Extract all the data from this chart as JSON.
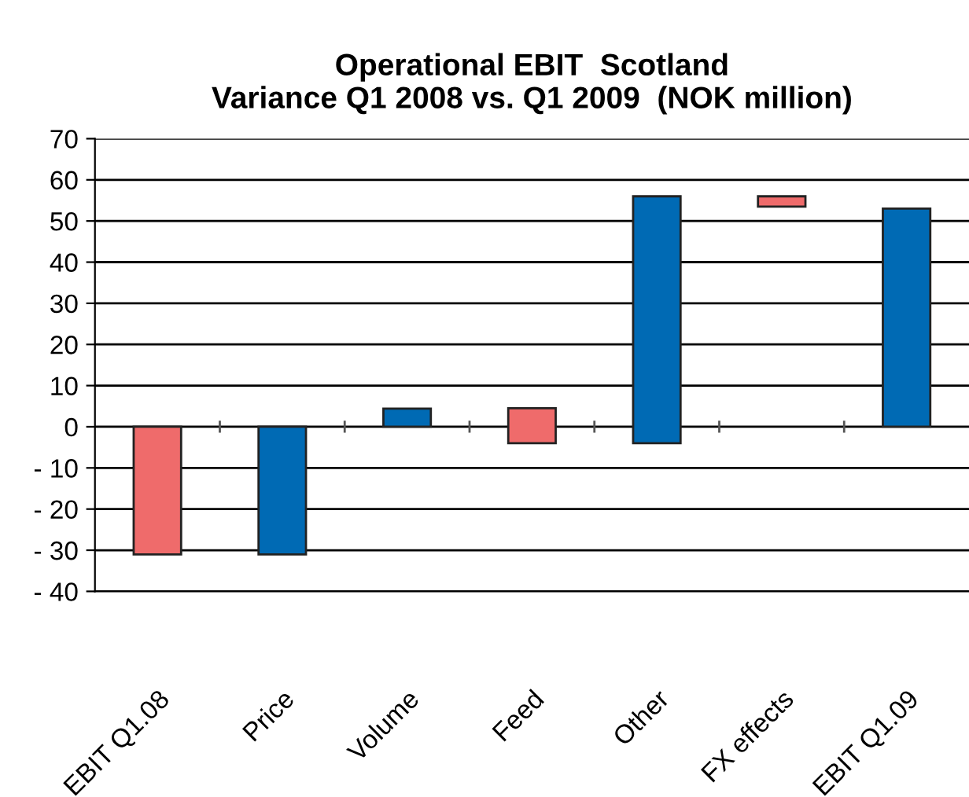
{
  "chart_data": {
    "type": "bar",
    "title": "Operational EBIT  Scotland\nVariance Q1 2008 vs. Q1 2009  (NOK million)",
    "categories": [
      "EBIT Q1.08",
      "Price",
      "Volume",
      "Feed",
      "Other",
      "FX effects",
      "EBIT Q1.09"
    ],
    "values": [
      -31,
      -31,
      4.4,
      8.5,
      60,
      2.5,
      53
    ],
    "base": [
      0,
      0,
      0,
      -4,
      -4,
      53.5,
      0
    ],
    "colors": [
      "#ef6b6b",
      "#006ab4",
      "#006ab4",
      "#ef6b6b",
      "#006ab4",
      "#ef6b6b",
      "#006ab4"
    ],
    "ylim": [
      -40,
      70
    ],
    "yticks": [
      70,
      60,
      50,
      40,
      30,
      20,
      10,
      0,
      {
        "value": -10,
        "label": "- 10"
      },
      {
        "value": -20,
        "label": "- 20"
      },
      {
        "value": -30,
        "label": "- 30"
      },
      {
        "value": -40,
        "label": "- 40"
      }
    ],
    "grid": "y"
  }
}
